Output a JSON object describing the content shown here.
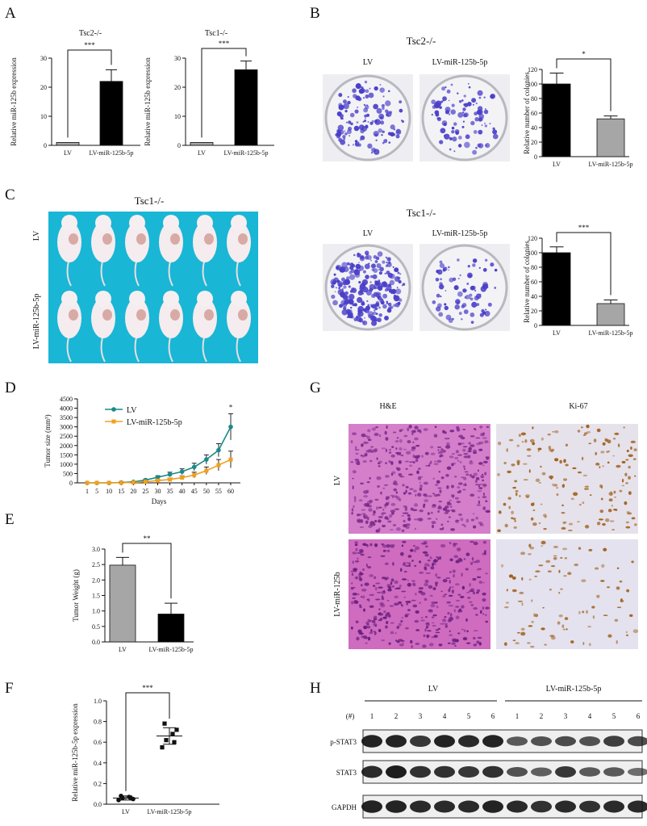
{
  "panel_letters": [
    "A",
    "B",
    "C",
    "D",
    "E",
    "F",
    "G",
    "H"
  ],
  "panel_a": {
    "ylabel": "Relative miR-125b expression"
  },
  "panel_b": {
    "tsc2_title": "Tsc2-/-",
    "tsc1_title": "Tsc1-/-",
    "col_left": "LV",
    "col_right": "LV-miR-125b-5p",
    "ylabel": "Relative number of colonies"
  },
  "panel_c": {
    "title": "Tsc1-/-",
    "row_top": "LV",
    "row_bottom": "LV-miR-125b-5p"
  },
  "panel_d": {
    "ylabel": "Tumor size (mm³)",
    "xlabel": "Days"
  },
  "panel_e": {
    "ylabel": "Tumor Weight (g)"
  },
  "panel_f": {
    "ylabel": "Relative miR-125b-5p expression"
  },
  "panel_g": {
    "col_left": "H&E",
    "col_right": "Ki-67",
    "row_top": "LV",
    "row_bottom": "LV-miR-125b"
  },
  "panel_h": {
    "group_left": "LV",
    "group_right": "LV-miR-125b-5p",
    "lane_header": "(#)",
    "lanes": [
      "1",
      "2",
      "3",
      "4",
      "5",
      "6",
      "1",
      "2",
      "3",
      "4",
      "5",
      "6"
    ],
    "blots": [
      {
        "name": "p-STAT3",
        "intensity": [
          0.95,
          0.95,
          0.8,
          0.95,
          0.9,
          0.95,
          0.55,
          0.6,
          0.65,
          0.6,
          0.75,
          0.65
        ]
      },
      {
        "name": "STAT3",
        "intensity": [
          0.9,
          1.0,
          0.85,
          0.85,
          0.8,
          0.85,
          0.6,
          0.5,
          0.8,
          0.55,
          0.55,
          0.4
        ]
      },
      {
        "name": "GAPDH",
        "intensity": [
          0.95,
          0.95,
          0.9,
          0.9,
          0.9,
          0.95,
          0.9,
          0.85,
          0.9,
          0.85,
          0.9,
          0.9
        ]
      }
    ]
  },
  "colors": {
    "lv_line": "#1a8a8a",
    "mir_line": "#f0a020",
    "gray_bar": "#a6a6a6",
    "black_bar": "#000000",
    "plate_blue": "#4a3fc8",
    "background_teal": "#19b6d6",
    "he_pink": "#c85ab8",
    "ki67_brown": "#a0601a"
  },
  "chart_data": [
    {
      "panel": "A-left",
      "type": "bar",
      "title": "Tsc2-/-",
      "categories": [
        "LV",
        "LV-miR-125b-5p"
      ],
      "values": [
        1,
        22
      ],
      "errors": [
        0,
        4
      ],
      "ylim": [
        0,
        30
      ],
      "yticks": [
        0,
        10,
        20,
        30
      ],
      "ylabel": "Relative miR-125b expression",
      "significance": "***",
      "colors": [
        "#a6a6a6",
        "#000000"
      ]
    },
    {
      "panel": "A-right",
      "type": "bar",
      "title": "Tsc1-/-",
      "categories": [
        "LV",
        "LV-miR-125b-5p"
      ],
      "values": [
        1,
        26
      ],
      "errors": [
        0,
        3
      ],
      "ylim": [
        0,
        30
      ],
      "yticks": [
        0,
        10,
        20,
        30
      ],
      "ylabel": "Relative miR-125b expression",
      "significance": "***",
      "colors": [
        "#a6a6a6",
        "#000000"
      ]
    },
    {
      "panel": "B-top",
      "type": "bar",
      "categories": [
        "LV",
        "LV-miR-125b-5p"
      ],
      "values": [
        100,
        52
      ],
      "errors": [
        15,
        4
      ],
      "ylim": [
        0,
        120
      ],
      "yticks": [
        0,
        20,
        40,
        60,
        80,
        100,
        120
      ],
      "ylabel": "Relative number of colonies",
      "significance": "*",
      "colors": [
        "#000000",
        "#a6a6a6"
      ]
    },
    {
      "panel": "B-bottom",
      "type": "bar",
      "categories": [
        "LV",
        "LV-miR-125b-5p"
      ],
      "values": [
        100,
        30
      ],
      "errors": [
        8,
        5
      ],
      "ylim": [
        0,
        120
      ],
      "yticks": [
        0,
        20,
        40,
        60,
        80,
        100,
        120
      ],
      "ylabel": "Relative number of colonies",
      "significance": "***",
      "colors": [
        "#000000",
        "#a6a6a6"
      ]
    },
    {
      "panel": "D",
      "type": "line",
      "x": [
        1,
        5,
        10,
        15,
        20,
        25,
        30,
        35,
        40,
        45,
        50,
        55,
        60
      ],
      "ylim": [
        0,
        4500
      ],
      "yticks": [
        0,
        500,
        1000,
        1500,
        2000,
        2500,
        3000,
        3500,
        4000,
        4500
      ],
      "xlabel": "Days",
      "ylabel": "Tumor size (mm³)",
      "legend": "top-left",
      "significance": "*",
      "series": [
        {
          "name": "LV",
          "color": "#1a8a8a",
          "marker": "circle",
          "values": [
            0,
            0,
            0,
            20,
            50,
            150,
            300,
            450,
            600,
            850,
            1250,
            1750,
            3000
          ],
          "errors": [
            0,
            0,
            0,
            10,
            20,
            50,
            80,
            120,
            150,
            200,
            250,
            350,
            700
          ]
        },
        {
          "name": "LV-miR-125b-5p",
          "color": "#f0a020",
          "marker": "square",
          "values": [
            0,
            0,
            0,
            10,
            20,
            60,
            120,
            180,
            280,
            420,
            650,
            950,
            1250
          ],
          "errors": [
            0,
            0,
            0,
            5,
            10,
            30,
            50,
            80,
            100,
            150,
            200,
            300,
            450
          ]
        }
      ]
    },
    {
      "panel": "E",
      "type": "bar",
      "categories": [
        "LV",
        "LV-miR-125b-5p"
      ],
      "values": [
        2.48,
        0.9
      ],
      "errors": [
        0.25,
        0.35
      ],
      "ylim": [
        0,
        3.0
      ],
      "yticks": [
        0.0,
        0.5,
        1.0,
        1.5,
        2.0,
        2.5,
        3.0
      ],
      "ylabel": "Tumor Weight (g)",
      "significance": "**",
      "colors": [
        "#a6a6a6",
        "#000000"
      ]
    },
    {
      "panel": "F",
      "type": "scatter",
      "categories": [
        "LV",
        "LV-miR-125b-5p"
      ],
      "ylim": [
        0,
        1.0
      ],
      "yticks": [
        0.0,
        0.2,
        0.4,
        0.6,
        0.8,
        1.0
      ],
      "ylabel": "Relative miR-125b-5p expression",
      "significance": "***",
      "series": [
        {
          "name": "LV",
          "marker": "circle",
          "values": [
            0.04,
            0.06,
            0.07,
            0.05,
            0.08,
            0.06
          ],
          "mean": 0.06,
          "sd": 0.02
        },
        {
          "name": "LV-miR-125b-5p",
          "marker": "square",
          "values": [
            0.55,
            0.62,
            0.68,
            0.72,
            0.78,
            0.6
          ],
          "mean": 0.66,
          "sd": 0.08
        }
      ]
    }
  ]
}
